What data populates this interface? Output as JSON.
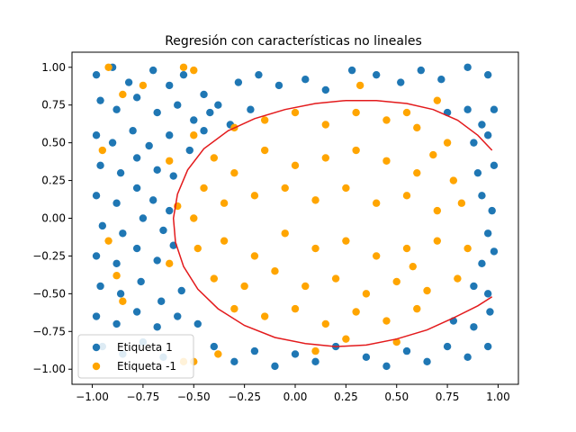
{
  "chart_data": {
    "type": "scatter",
    "title": "Regresión con características no lineales",
    "xlabel": "",
    "ylabel": "",
    "xlim": [
      -1.1,
      1.1
    ],
    "ylim": [
      -1.1,
      1.1
    ],
    "x_ticks": [
      -1.0,
      -0.75,
      -0.5,
      -0.25,
      0.0,
      0.25,
      0.5,
      0.75,
      1.0
    ],
    "y_ticks": [
      -1.0,
      -0.75,
      -0.5,
      -0.25,
      0.0,
      0.25,
      0.5,
      0.75,
      1.0
    ],
    "x_tick_labels": [
      "−1.00",
      "−0.75",
      "−0.50",
      "−0.25",
      "0.00",
      "0.25",
      "0.50",
      "0.75",
      "1.00"
    ],
    "y_tick_labels": [
      "−1.00",
      "−0.75",
      "−0.50",
      "−0.25",
      "0.00",
      "0.25",
      "0.50",
      "0.75",
      "1.00"
    ],
    "grid": false,
    "legend_position": "lower-left",
    "series": [
      {
        "name": "Etiqueta 1",
        "color": "#1f77b4",
        "points": [
          [
            -0.98,
            0.95
          ],
          [
            -0.9,
            1.0
          ],
          [
            -0.82,
            0.9
          ],
          [
            -0.7,
            0.98
          ],
          [
            -0.62,
            0.88
          ],
          [
            -0.55,
            0.95
          ],
          [
            -0.45,
            0.82
          ],
          [
            -0.38,
            0.75
          ],
          [
            -0.28,
            0.9
          ],
          [
            -0.18,
            0.95
          ],
          [
            -0.08,
            0.88
          ],
          [
            0.05,
            0.92
          ],
          [
            0.15,
            0.85
          ],
          [
            0.28,
            0.98
          ],
          [
            0.4,
            0.95
          ],
          [
            0.52,
            0.9
          ],
          [
            0.62,
            0.98
          ],
          [
            0.72,
            0.92
          ],
          [
            0.85,
            1.0
          ],
          [
            0.95,
            0.95
          ],
          [
            -0.96,
            0.78
          ],
          [
            -0.88,
            0.72
          ],
          [
            -0.78,
            0.8
          ],
          [
            -0.68,
            0.7
          ],
          [
            -0.58,
            0.75
          ],
          [
            -0.5,
            0.65
          ],
          [
            -0.42,
            0.7
          ],
          [
            -0.32,
            0.62
          ],
          [
            -0.22,
            0.72
          ],
          [
            0.75,
            0.7
          ],
          [
            0.85,
            0.72
          ],
          [
            0.92,
            0.62
          ],
          [
            0.98,
            0.72
          ],
          [
            -0.98,
            0.55
          ],
          [
            -0.9,
            0.5
          ],
          [
            -0.8,
            0.58
          ],
          [
            -0.72,
            0.48
          ],
          [
            -0.62,
            0.55
          ],
          [
            -0.52,
            0.45
          ],
          [
            -0.45,
            0.58
          ],
          [
            0.88,
            0.5
          ],
          [
            0.95,
            0.55
          ],
          [
            -0.96,
            0.35
          ],
          [
            -0.86,
            0.3
          ],
          [
            -0.78,
            0.4
          ],
          [
            -0.68,
            0.32
          ],
          [
            -0.6,
            0.28
          ],
          [
            0.9,
            0.3
          ],
          [
            0.98,
            0.35
          ],
          [
            -0.98,
            0.15
          ],
          [
            -0.88,
            0.1
          ],
          [
            -0.78,
            0.2
          ],
          [
            -0.7,
            0.12
          ],
          [
            -0.62,
            0.05
          ],
          [
            0.92,
            0.15
          ],
          [
            0.97,
            0.05
          ],
          [
            -0.95,
            -0.05
          ],
          [
            -0.85,
            -0.1
          ],
          [
            -0.75,
            0.0
          ],
          [
            -0.65,
            -0.08
          ],
          [
            0.95,
            -0.1
          ],
          [
            -0.98,
            -0.25
          ],
          [
            -0.88,
            -0.3
          ],
          [
            -0.78,
            -0.2
          ],
          [
            -0.68,
            -0.28
          ],
          [
            -0.6,
            -0.18
          ],
          [
            0.92,
            -0.3
          ],
          [
            0.98,
            -0.22
          ],
          [
            -0.96,
            -0.45
          ],
          [
            -0.86,
            -0.5
          ],
          [
            -0.76,
            -0.42
          ],
          [
            -0.66,
            -0.55
          ],
          [
            -0.56,
            -0.48
          ],
          [
            0.88,
            -0.45
          ],
          [
            0.95,
            -0.5
          ],
          [
            -0.98,
            -0.65
          ],
          [
            -0.88,
            -0.7
          ],
          [
            -0.78,
            -0.62
          ],
          [
            -0.68,
            -0.72
          ],
          [
            -0.58,
            -0.65
          ],
          [
            -0.48,
            -0.7
          ],
          [
            0.78,
            -0.68
          ],
          [
            0.88,
            -0.72
          ],
          [
            0.96,
            -0.62
          ],
          [
            -0.95,
            -0.85
          ],
          [
            -0.85,
            -0.9
          ],
          [
            -0.75,
            -0.82
          ],
          [
            -0.65,
            -0.92
          ],
          [
            -0.4,
            -0.85
          ],
          [
            -0.3,
            -0.95
          ],
          [
            -0.2,
            -0.88
          ],
          [
            -0.1,
            -0.98
          ],
          [
            0.0,
            -0.9
          ],
          [
            0.1,
            -0.95
          ],
          [
            0.2,
            -0.85
          ],
          [
            0.35,
            -0.92
          ],
          [
            0.45,
            -0.98
          ],
          [
            0.55,
            -0.88
          ],
          [
            0.65,
            -0.95
          ],
          [
            0.75,
            -0.85
          ],
          [
            0.85,
            -0.92
          ],
          [
            0.95,
            -0.85
          ]
        ]
      },
      {
        "name": "Etiqueta -1",
        "color": "#ffa500",
        "points": [
          [
            -0.92,
            1.0
          ],
          [
            -0.55,
            1.0
          ],
          [
            -0.5,
            0.98
          ],
          [
            0.32,
            0.88
          ],
          [
            0.55,
            0.7
          ],
          [
            0.7,
            0.78
          ],
          [
            -0.85,
            0.82
          ],
          [
            -0.75,
            0.88
          ],
          [
            -0.5,
            0.55
          ],
          [
            -0.4,
            0.4
          ],
          [
            -0.3,
            0.6
          ],
          [
            -0.15,
            0.65
          ],
          [
            0.0,
            0.7
          ],
          [
            0.15,
            0.62
          ],
          [
            0.3,
            0.7
          ],
          [
            0.45,
            0.65
          ],
          [
            0.6,
            0.6
          ],
          [
            0.75,
            0.5
          ],
          [
            -0.45,
            0.2
          ],
          [
            -0.3,
            0.3
          ],
          [
            -0.15,
            0.45
          ],
          [
            0.0,
            0.35
          ],
          [
            0.15,
            0.4
          ],
          [
            0.3,
            0.45
          ],
          [
            0.45,
            0.38
          ],
          [
            0.6,
            0.3
          ],
          [
            0.78,
            0.25
          ],
          [
            -0.5,
            0.0
          ],
          [
            -0.35,
            0.1
          ],
          [
            -0.2,
            0.15
          ],
          [
            -0.05,
            0.2
          ],
          [
            0.1,
            0.12
          ],
          [
            0.25,
            0.2
          ],
          [
            0.4,
            0.1
          ],
          [
            0.55,
            0.15
          ],
          [
            0.7,
            0.05
          ],
          [
            0.82,
            0.1
          ],
          [
            -0.48,
            -0.2
          ],
          [
            -0.35,
            -0.15
          ],
          [
            -0.2,
            -0.25
          ],
          [
            -0.05,
            -0.1
          ],
          [
            0.1,
            -0.2
          ],
          [
            0.25,
            -0.15
          ],
          [
            0.4,
            -0.25
          ],
          [
            0.55,
            -0.2
          ],
          [
            0.7,
            -0.15
          ],
          [
            0.85,
            -0.2
          ],
          [
            -0.4,
            -0.4
          ],
          [
            -0.25,
            -0.45
          ],
          [
            -0.1,
            -0.35
          ],
          [
            0.05,
            -0.45
          ],
          [
            0.2,
            -0.4
          ],
          [
            0.35,
            -0.5
          ],
          [
            0.5,
            -0.42
          ],
          [
            0.65,
            -0.48
          ],
          [
            0.8,
            -0.4
          ],
          [
            -0.3,
            -0.6
          ],
          [
            -0.15,
            -0.65
          ],
          [
            0.0,
            -0.6
          ],
          [
            0.15,
            -0.7
          ],
          [
            0.3,
            -0.62
          ],
          [
            0.45,
            -0.68
          ],
          [
            0.6,
            -0.6
          ],
          [
            -0.95,
            0.45
          ],
          [
            -0.88,
            -0.38
          ],
          [
            -0.92,
            -0.15
          ],
          [
            -0.85,
            -0.55
          ],
          [
            -0.62,
            -0.3
          ],
          [
            -0.55,
            -0.95
          ],
          [
            -0.5,
            -0.95
          ],
          [
            -0.38,
            -0.9
          ],
          [
            0.1,
            -0.88
          ],
          [
            0.25,
            -0.8
          ],
          [
            0.5,
            -0.82
          ],
          [
            -0.62,
            0.38
          ],
          [
            -0.58,
            0.08
          ],
          [
            0.68,
            0.42
          ],
          [
            0.58,
            -0.32
          ]
        ]
      }
    ],
    "curve": {
      "color": "#e31a1c",
      "points": [
        [
          0.97,
          0.45
        ],
        [
          0.9,
          0.55
        ],
        [
          0.8,
          0.65
        ],
        [
          0.68,
          0.72
        ],
        [
          0.55,
          0.76
        ],
        [
          0.4,
          0.78
        ],
        [
          0.25,
          0.78
        ],
        [
          0.1,
          0.76
        ],
        [
          -0.05,
          0.72
        ],
        [
          -0.2,
          0.66
        ],
        [
          -0.33,
          0.58
        ],
        [
          -0.45,
          0.46
        ],
        [
          -0.53,
          0.32
        ],
        [
          -0.58,
          0.16
        ],
        [
          -0.6,
          0.0
        ],
        [
          -0.59,
          -0.16
        ],
        [
          -0.55,
          -0.32
        ],
        [
          -0.48,
          -0.47
        ],
        [
          -0.38,
          -0.6
        ],
        [
          -0.25,
          -0.71
        ],
        [
          -0.1,
          -0.79
        ],
        [
          0.05,
          -0.83
        ],
        [
          0.2,
          -0.85
        ],
        [
          0.35,
          -0.84
        ],
        [
          0.5,
          -0.8
        ],
        [
          0.65,
          -0.74
        ],
        [
          0.78,
          -0.66
        ],
        [
          0.9,
          -0.58
        ],
        [
          0.97,
          -0.52
        ]
      ]
    }
  }
}
